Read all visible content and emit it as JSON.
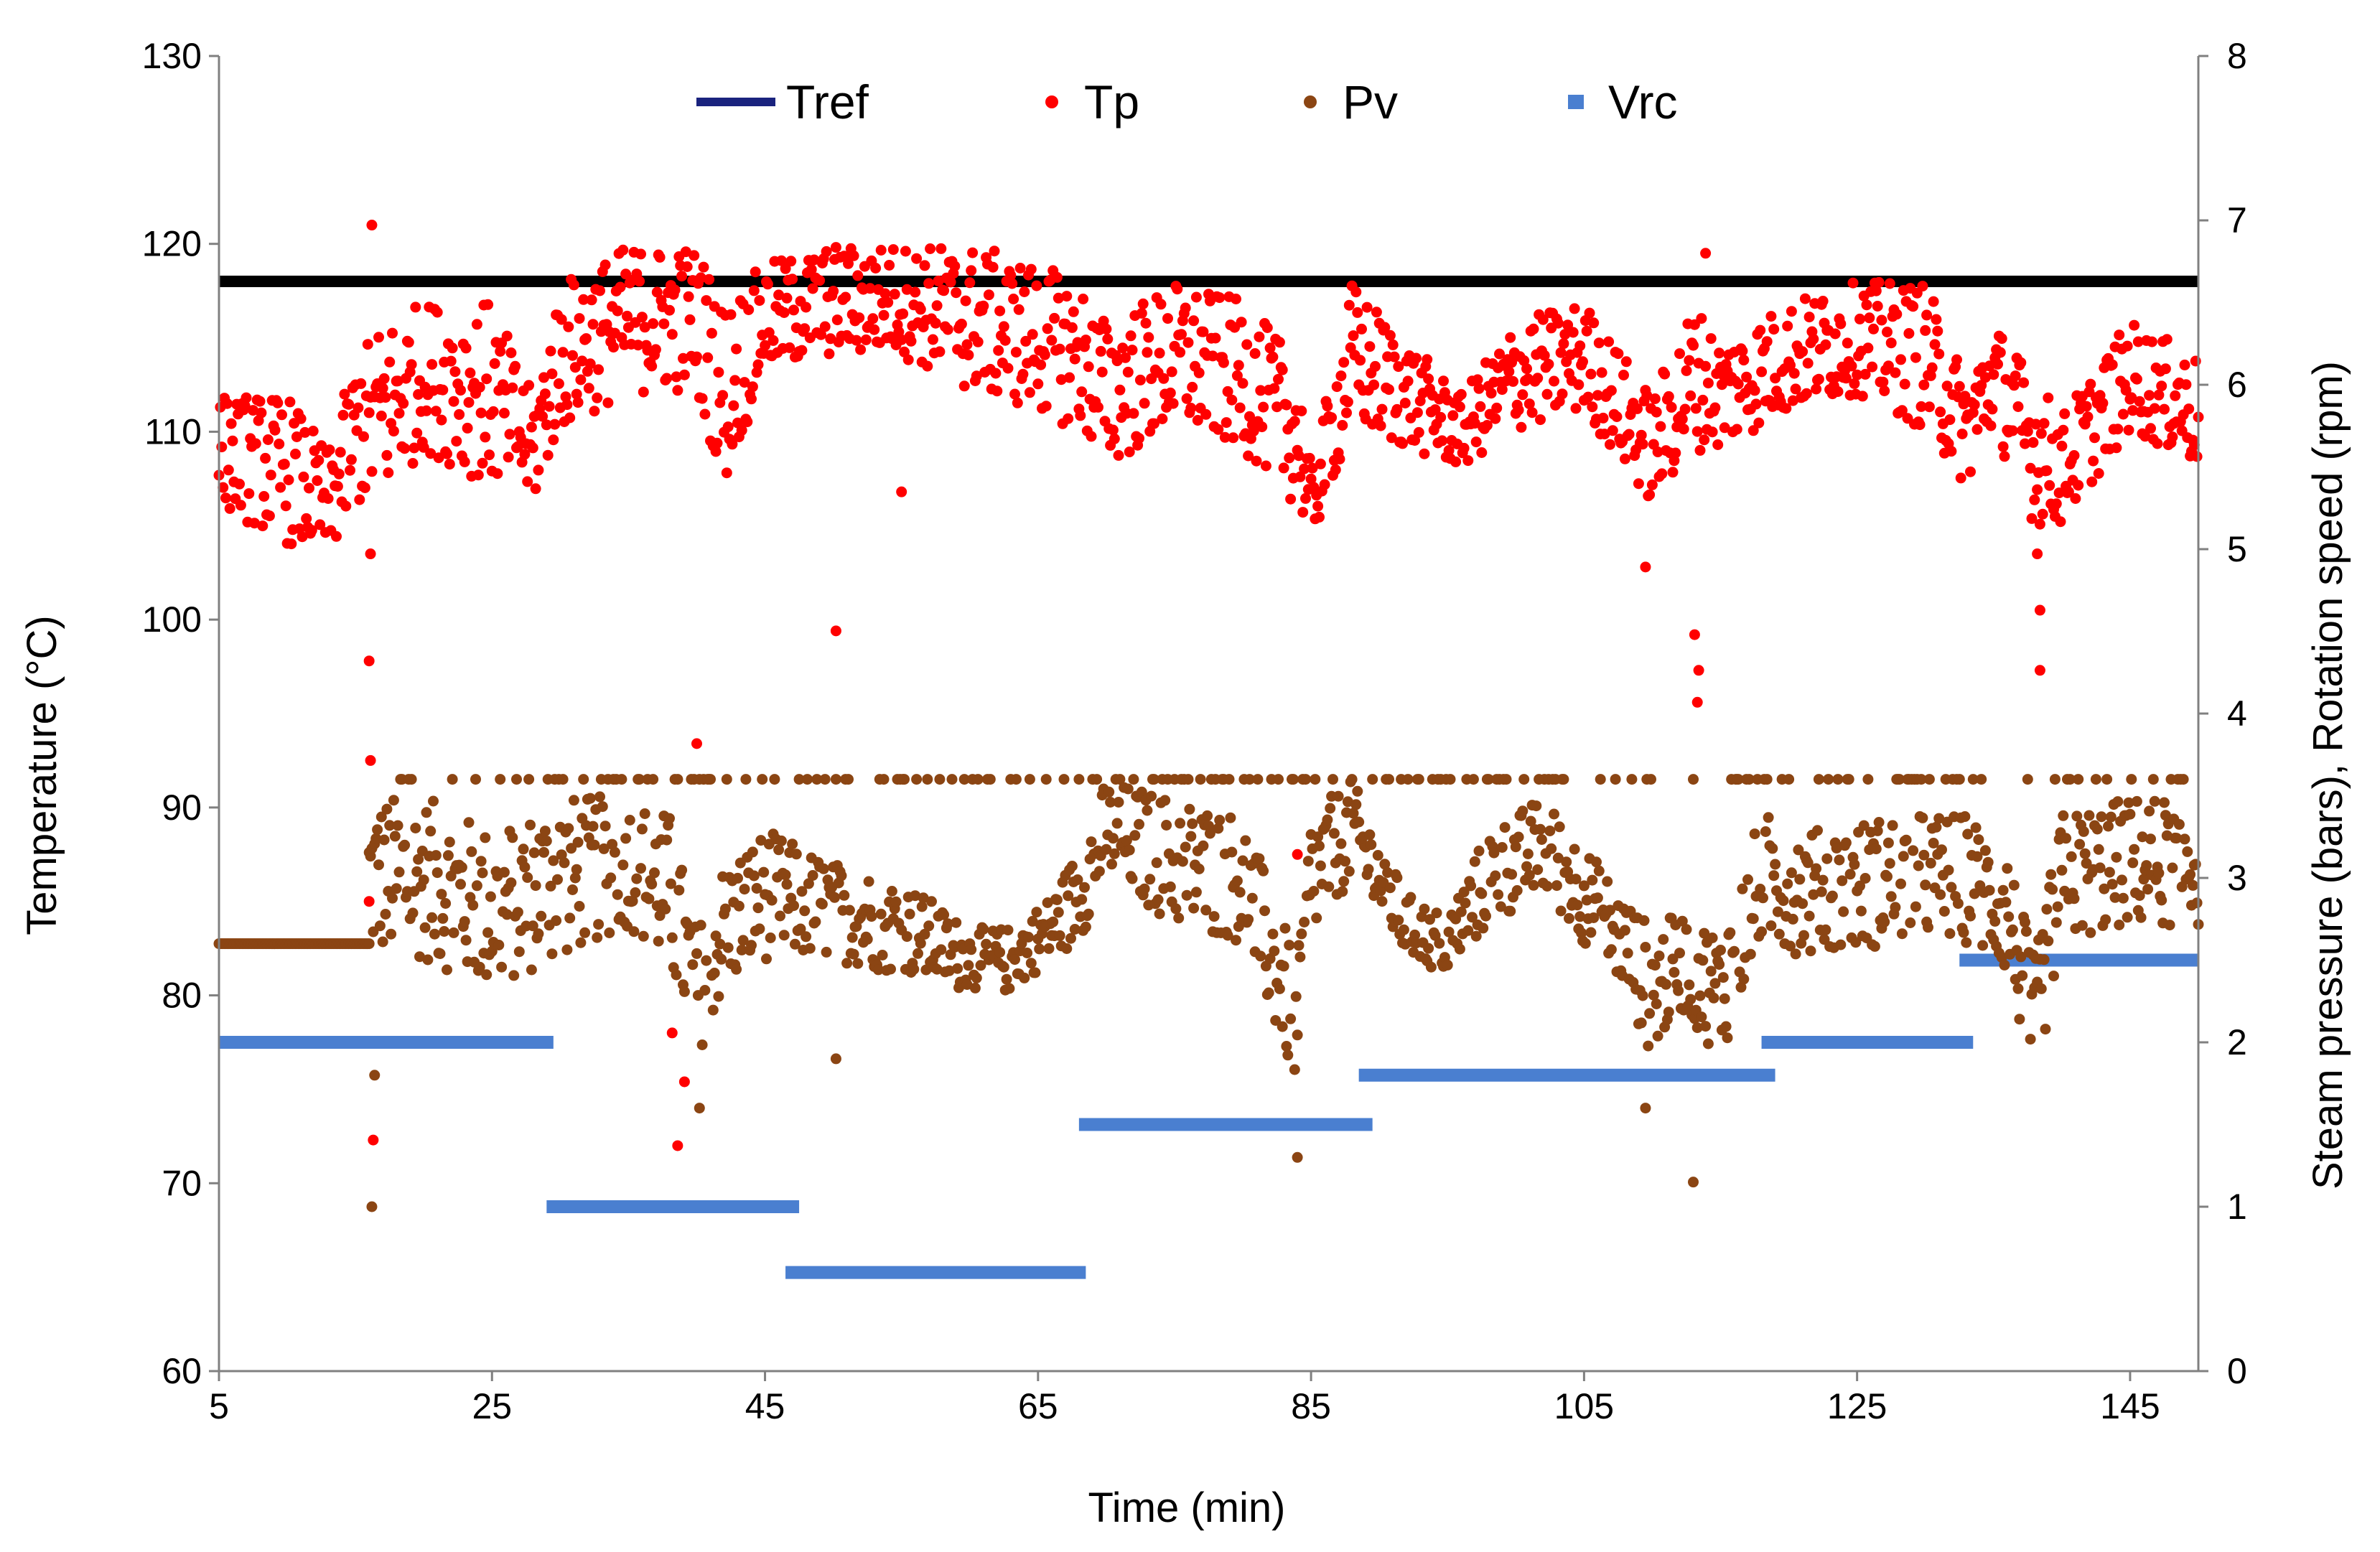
{
  "chart_data": {
    "type": "scatter",
    "xlabel": "Time (min)",
    "ylabel_left": "Temperature (°C)",
    "ylabel_right": "Steam pressure (bars),  Rotation speed (rpm)",
    "xlim": [
      5,
      150
    ],
    "ylim_left": [
      60,
      130
    ],
    "ylim_right": [
      0,
      8
    ],
    "x_ticks": [
      5,
      25,
      45,
      65,
      85,
      105,
      125,
      145
    ],
    "x_tick_labels": [
      "5",
      "25",
      "45",
      "65",
      "85",
      "105",
      "125",
      "145"
    ],
    "y_left_ticks": [
      60,
      70,
      80,
      90,
      100,
      110,
      120,
      130
    ],
    "y_left_tick_labels": [
      "60",
      "70",
      "80",
      "90",
      "100",
      "110",
      "120",
      "130"
    ],
    "y_right_ticks": [
      0,
      1,
      2,
      3,
      4,
      5,
      6,
      7,
      8
    ],
    "y_right_tick_labels": [
      "0",
      "1",
      "2",
      "3",
      "4",
      "5",
      "6",
      "7",
      "8"
    ],
    "grid": false,
    "legend_position": "top-center",
    "legend": [
      {
        "key": "Tref",
        "label": "Tref",
        "marker": "line",
        "color": "#1a237e"
      },
      {
        "key": "Tp",
        "label": "Tp",
        "marker": "dot",
        "color": "#ff0000"
      },
      {
        "key": "Pv",
        "label": "Pv",
        "marker": "dot",
        "color": "#8b4513"
      },
      {
        "key": "Vrc",
        "label": "Vrc",
        "marker": "square",
        "color": "#4a7fd0"
      }
    ],
    "series": [
      {
        "name": "Tref",
        "axis": "left",
        "type": "line",
        "color": "#000000",
        "x": [
          5,
          150
        ],
        "values": [
          118,
          118
        ]
      },
      {
        "name": "Tp",
        "axis": "left",
        "type": "scatter",
        "color": "#ff0000",
        "note": "approx. one point per 0.1 min; trend points (time, mean, spread) below",
        "trend": [
          [
            5,
            109,
            3
          ],
          [
            10,
            108,
            4
          ],
          [
            13,
            106,
            3
          ],
          [
            15,
            110,
            4
          ],
          [
            17,
            111,
            5
          ],
          [
            20,
            113,
            4
          ],
          [
            25,
            112,
            5
          ],
          [
            28,
            109,
            3
          ],
          [
            30,
            114,
            4
          ],
          [
            35,
            116,
            4
          ],
          [
            40,
            116,
            4
          ],
          [
            42,
            112,
            5
          ],
          [
            45,
            116,
            3
          ],
          [
            50,
            117,
            3
          ],
          [
            55,
            117,
            3
          ],
          [
            60,
            116,
            4
          ],
          [
            65,
            115,
            4
          ],
          [
            68,
            114,
            4
          ],
          [
            70,
            112,
            4
          ],
          [
            75,
            114,
            4
          ],
          [
            80,
            113,
            4
          ],
          [
            84,
            110,
            4
          ],
          [
            85,
            106,
            2
          ],
          [
            88,
            114,
            4
          ],
          [
            92,
            112,
            3
          ],
          [
            96,
            110,
            2
          ],
          [
            100,
            113,
            3
          ],
          [
            105,
            114,
            3
          ],
          [
            110,
            109,
            3
          ],
          [
            113,
            113,
            4
          ],
          [
            115,
            112,
            3
          ],
          [
            120,
            114,
            3
          ],
          [
            125,
            115,
            3
          ],
          [
            130,
            114,
            4
          ],
          [
            133,
            110,
            3
          ],
          [
            135,
            113,
            3
          ],
          [
            138,
            109,
            4
          ],
          [
            140,
            108,
            3
          ],
          [
            145,
            113,
            3
          ],
          [
            150,
            111,
            3
          ]
        ],
        "outliers": [
          [
            16.2,
            121
          ],
          [
            16.1,
            103.5
          ],
          [
            16.0,
            97.8
          ],
          [
            16.1,
            92.5
          ],
          [
            16.0,
            85
          ],
          [
            16.3,
            72.3
          ],
          [
            38.2,
            78
          ],
          [
            38.6,
            72
          ],
          [
            39.1,
            75.4
          ],
          [
            40.0,
            93.4
          ],
          [
            50.2,
            99.4
          ],
          [
            55.0,
            106.8
          ],
          [
            84.0,
            87.5
          ],
          [
            109.5,
            102.8
          ],
          [
            113.1,
            99.2
          ],
          [
            113.4,
            97.3
          ],
          [
            113.3,
            95.6
          ],
          [
            113.9,
            119.5
          ],
          [
            138.2,
            103.5
          ],
          [
            138.4,
            100.5
          ],
          [
            138.4,
            97.3
          ]
        ]
      },
      {
        "name": "Pv",
        "axis": "right",
        "type": "scatter",
        "color": "#8b4513",
        "note": "approx. one point per 0.1 min; banded between low and 3.6 bar saturation",
        "constant_segment": {
          "x": [
            5,
            16
          ],
          "value": 2.6
        },
        "saturation": 3.6,
        "trend": [
          [
            16,
            3.0,
            0.5
          ],
          [
            20,
            3.0,
            0.5
          ],
          [
            25,
            2.8,
            0.5
          ],
          [
            30,
            3.0,
            0.5
          ],
          [
            35,
            3.1,
            0.4
          ],
          [
            38,
            2.9,
            0.5
          ],
          [
            40,
            2.3,
            0.4
          ],
          [
            42,
            2.7,
            0.4
          ],
          [
            45,
            2.9,
            0.4
          ],
          [
            50,
            2.8,
            0.3
          ],
          [
            55,
            2.7,
            0.3
          ],
          [
            60,
            2.5,
            0.2
          ],
          [
            63,
            2.5,
            0.2
          ],
          [
            66,
            2.7,
            0.2
          ],
          [
            68,
            2.9,
            0.3
          ],
          [
            70,
            3.3,
            0.3
          ],
          [
            75,
            3.1,
            0.4
          ],
          [
            80,
            3.0,
            0.4
          ],
          [
            84,
            2.1,
            0.4
          ],
          [
            85,
            3.0,
            0.4
          ],
          [
            88,
            3.3,
            0.3
          ],
          [
            92,
            2.7,
            0.2
          ],
          [
            95,
            2.6,
            0.2
          ],
          [
            98,
            3.0,
            0.3
          ],
          [
            102,
            3.2,
            0.3
          ],
          [
            105,
            2.9,
            0.3
          ],
          [
            108,
            2.6,
            0.3
          ],
          [
            110,
            2.3,
            0.4
          ],
          [
            112,
            2.5,
            0.3
          ],
          [
            115,
            2.3,
            0.4
          ],
          [
            118,
            3.0,
            0.4
          ],
          [
            122,
            2.9,
            0.4
          ],
          [
            128,
            3.0,
            0.4
          ],
          [
            133,
            3.0,
            0.4
          ],
          [
            136,
            2.8,
            0.4
          ],
          [
            138,
            2.1,
            0.4
          ],
          [
            140,
            3.0,
            0.4
          ],
          [
            145,
            3.1,
            0.4
          ],
          [
            150,
            3.1,
            0.4
          ]
        ],
        "outliers": [
          [
            16.2,
            1.0
          ],
          [
            16.4,
            1.8
          ],
          [
            40.2,
            1.6
          ],
          [
            50.2,
            1.9
          ],
          [
            84.0,
            1.3
          ],
          [
            109.5,
            1.6
          ],
          [
            113.0,
            1.15
          ]
        ]
      },
      {
        "name": "Vrc",
        "axis": "right",
        "type": "step",
        "color": "#4a7fd0",
        "segments": [
          {
            "x_start": 5,
            "x_end": 29.5,
            "value": 2.0
          },
          {
            "x_start": 29,
            "x_end": 47.5,
            "value": 1.0
          },
          {
            "x_start": 46.5,
            "x_end": 68.5,
            "value": 0.6
          },
          {
            "x_start": 68,
            "x_end": 89.5,
            "value": 1.5
          },
          {
            "x_start": 88.5,
            "x_end": 119,
            "value": 1.8
          },
          {
            "x_start": 118,
            "x_end": 133.5,
            "value": 2.0
          },
          {
            "x_start": 132.5,
            "x_end": 150,
            "value": 2.5
          }
        ]
      }
    ]
  }
}
